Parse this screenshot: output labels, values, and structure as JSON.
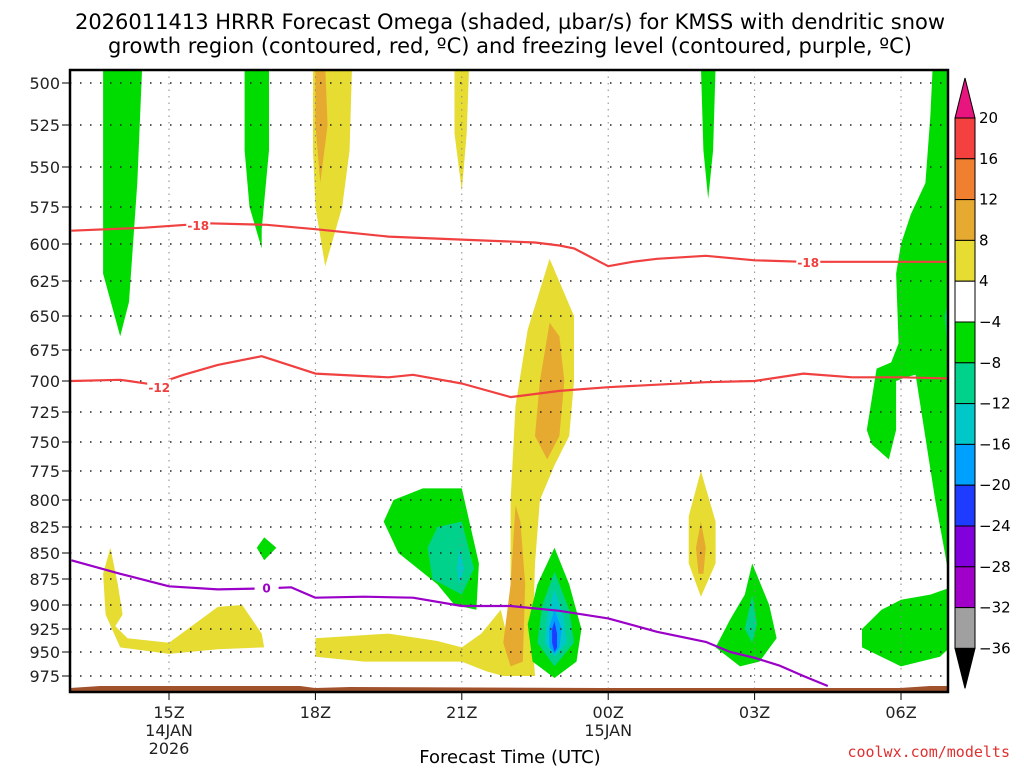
{
  "chart_data": {
    "type": "heatmap",
    "title": "2026011413 HRRR Forecast Omega (shaded, µbar/s) for KMSS with dendritic snow",
    "subtitle": "growth region (contoured, red, ºC) and freezing level (contoured, purple, ºC)",
    "xlabel": "Forecast Time (UTC)",
    "ylabel": "",
    "credit": "coolwx.com/modelts",
    "y_axis": {
      "unit": "mb",
      "range": [
        500,
        985
      ],
      "inverted": true,
      "ticks": [
        500,
        525,
        550,
        575,
        600,
        625,
        650,
        675,
        700,
        725,
        750,
        775,
        800,
        825,
        850,
        875,
        900,
        925,
        950,
        975
      ]
    },
    "x_axis": {
      "unit": "hours since 15Z 14JAN",
      "range": [
        -2.0,
        16.0
      ],
      "ticks": [
        {
          "hour": 0,
          "lines": [
            "15Z",
            "14JAN",
            "2026"
          ]
        },
        {
          "hour": 3,
          "lines": [
            "18Z"
          ]
        },
        {
          "hour": 6,
          "lines": [
            "21Z"
          ]
        },
        {
          "hour": 9,
          "lines": [
            "00Z",
            "15JAN"
          ]
        },
        {
          "hour": 12,
          "lines": [
            "03Z"
          ]
        },
        {
          "hour": 15,
          "lines": [
            "06Z"
          ]
        }
      ],
      "grid": true
    },
    "colorbar": {
      "levels": [
        20,
        16,
        12,
        8,
        4,
        -4,
        -8,
        -12,
        -16,
        -20,
        -24,
        -28,
        -32,
        -36
      ],
      "colors": [
        "#e8157f",
        "#f54040",
        "#f08030",
        "#e6aa30",
        "#e6dc32",
        "#ffffff",
        "#00dc00",
        "#00d28c",
        "#00c8c8",
        "#00a0ff",
        "#1e3cff",
        "#8200dc",
        "#a000c8",
        "#a0a0a0",
        "#000000"
      ],
      "extend": "both"
    },
    "shaded_regions": [
      {
        "level": "-4 to -8",
        "color_index": 6,
        "desc": "green upward motion cell near 15Z 500-660mb"
      },
      {
        "level": "-4 to -8",
        "color_index": 6,
        "desc": "green cell near 17Z 500-600mb"
      },
      {
        "level": "4 to 12",
        "color_index": 4,
        "desc": "yellow/orange sinking cell near 18Z 500-610mb"
      },
      {
        "level": "4 to 8",
        "color_index": 4,
        "desc": "yellow cell near 21Z 500-570mb"
      },
      {
        "level": "-4 to -8",
        "color_index": 6,
        "desc": "narrow green cell near 02Z 500-570mb"
      },
      {
        "level": "-4 to -12",
        "color_index": 6,
        "desc": "green/teal region 05Z-07Z 500-960mb"
      },
      {
        "level": "4 to 12",
        "color_index": 4,
        "desc": "tall yellow/orange plume 22Z-23Z 610-975mb"
      },
      {
        "level": "-4 to -16",
        "color_index": 6,
        "desc": "green/teal cell near 20Z-21Z 790-905mb"
      },
      {
        "level": "-4 to -20",
        "color_index": 6,
        "desc": "green-to-blue cell near 23Z 840-975mb, min ~-22"
      },
      {
        "level": "4 to 12",
        "color_index": 4,
        "desc": "yellow/orange cell near 02Z 775-890mb"
      },
      {
        "level": "-4 to -12",
        "color_index": 6,
        "desc": "green/teal cell near 03Z 870-965mb"
      },
      {
        "level": "-4 to -8",
        "color_index": 6,
        "desc": "green cell near 06Z 880-960mb"
      },
      {
        "level": "4 to 8",
        "color_index": 4,
        "desc": "yellow low-level area 14Z-20Z 850-960mb"
      },
      {
        "level": "-4 to -8",
        "color_index": 6,
        "desc": "small green diamond near 17Z 840mb"
      }
    ],
    "contours": [
      {
        "name": "dgz -18C",
        "color": "#f04040",
        "label": "-18",
        "points": [
          [
            -2.0,
            591
          ],
          [
            -0.5,
            589
          ],
          [
            0.8,
            586
          ],
          [
            2.0,
            587
          ],
          [
            3.0,
            590
          ],
          [
            4.5,
            595
          ],
          [
            6.0,
            597
          ],
          [
            7.5,
            599
          ],
          [
            8.0,
            601
          ],
          [
            8.3,
            603
          ],
          [
            9.0,
            615
          ],
          [
            9.5,
            612
          ],
          [
            10.0,
            610
          ],
          [
            11.0,
            608
          ],
          [
            12.0,
            611
          ],
          [
            13.0,
            612
          ],
          [
            14.0,
            612
          ],
          [
            15.0,
            612
          ],
          [
            16.0,
            612
          ]
        ],
        "label_at": [
          0.6,
          587
        ]
      },
      {
        "name": "dgz -18C label 2",
        "color": "#f04040",
        "label": "-18",
        "points": [],
        "label_at": [
          13.1,
          612
        ]
      },
      {
        "name": "dgz -12C",
        "color": "#f04040",
        "label": "-12",
        "points": [
          [
            -2.0,
            700
          ],
          [
            -1.0,
            699
          ],
          [
            -0.3,
            703
          ],
          [
            0.3,
            695
          ],
          [
            1.0,
            687
          ],
          [
            1.9,
            680
          ],
          [
            3.0,
            694
          ],
          [
            4.5,
            697
          ],
          [
            5.0,
            695
          ],
          [
            6.0,
            702
          ],
          [
            7.0,
            713
          ],
          [
            8.0,
            708
          ],
          [
            9.0,
            705
          ],
          [
            10.0,
            703
          ],
          [
            11.0,
            701
          ],
          [
            12.0,
            700
          ],
          [
            13.0,
            694
          ],
          [
            14.0,
            697
          ],
          [
            15.0,
            697
          ],
          [
            16.0,
            698
          ]
        ],
        "label_at": [
          -0.2,
          705
        ]
      },
      {
        "name": "freezing level 0C",
        "color": "#9b00c8",
        "label": "0",
        "points": [
          [
            -2.0,
            857
          ],
          [
            -1.0,
            870
          ],
          [
            0.0,
            882
          ],
          [
            1.0,
            885
          ],
          [
            2.0,
            884
          ],
          [
            2.5,
            883
          ],
          [
            3.0,
            893
          ],
          [
            4.0,
            892
          ],
          [
            5.0,
            893
          ],
          [
            6.0,
            901
          ],
          [
            7.0,
            901
          ],
          [
            8.0,
            906
          ],
          [
            9.0,
            914
          ],
          [
            10.0,
            928
          ],
          [
            11.0,
            939
          ],
          [
            11.5,
            950
          ],
          [
            12.0,
            956
          ],
          [
            12.5,
            964
          ],
          [
            13.0,
            975
          ],
          [
            13.5,
            985
          ]
        ],
        "label_at": [
          2.0,
          883
        ]
      }
    ],
    "terrain": {
      "color": "#a0522d",
      "surface_mb": 982
    }
  }
}
